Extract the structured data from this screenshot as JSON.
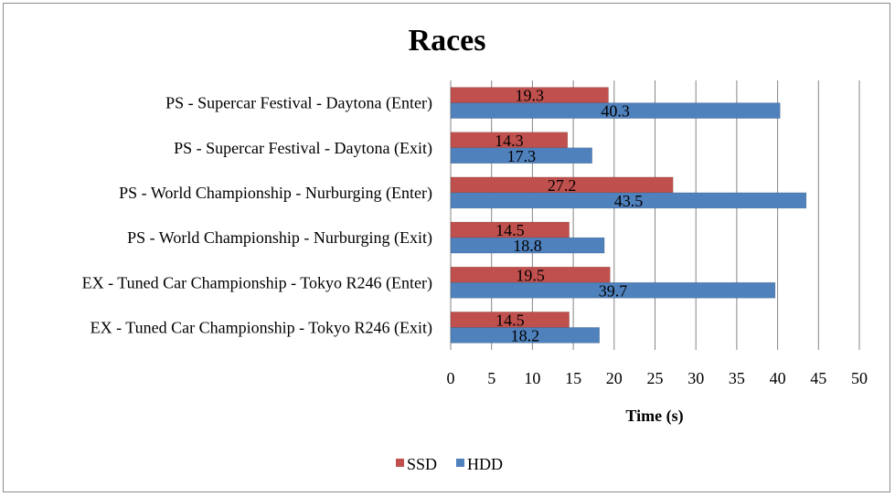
{
  "chart_data": {
    "type": "bar",
    "orientation": "horizontal",
    "title": "Races",
    "xlabel": "Time (s)",
    "ylabel": "",
    "xlim": [
      0,
      50
    ],
    "xticks": [
      "0",
      "5",
      "10",
      "15",
      "20",
      "25",
      "30",
      "35",
      "40",
      "45",
      "50"
    ],
    "grid": true,
    "legend_position": "bottom",
    "categories": [
      "PS - Supercar Festival - Daytona (Enter)",
      "PS - Supercar Festival - Daytona (Exit)",
      "PS - World Championship - Nurburging (Enter)",
      "PS - World Championship - Nurburging (Exit)",
      "EX - Tuned Car Championship - Tokyo R246 (Enter)",
      "EX - Tuned Car Championship - Tokyo R246 (Exit)"
    ],
    "series": [
      {
        "name": "SSD",
        "color": "#c0504d",
        "values": [
          19.3,
          14.3,
          27.2,
          14.5,
          19.5,
          14.5
        ]
      },
      {
        "name": "HDD",
        "color": "#4f81bd",
        "values": [
          40.3,
          17.3,
          43.5,
          18.8,
          39.7,
          18.2
        ]
      }
    ]
  }
}
